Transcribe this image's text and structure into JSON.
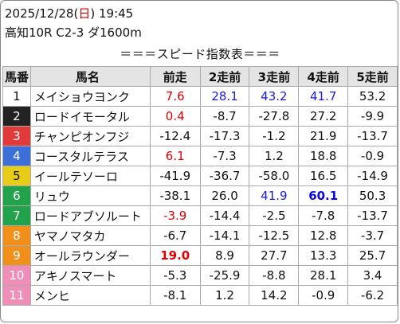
{
  "header": {
    "date": "2025/12/28",
    "weekday_open": "(",
    "weekday": "日",
    "weekday_close": ")",
    "time": "19:45",
    "race_info": "高知10R C2-3 ダ1600m",
    "caption": "＝＝＝スピード指数表＝＝＝"
  },
  "columns": [
    "馬番",
    "馬名",
    "前走",
    "2走前",
    "3走前",
    "4走前",
    "5走前"
  ],
  "colors": {
    "red": "#e00000",
    "blue": "#1a1ad8",
    "bold_blue": "#0a0ae0",
    "bold_red": "#e00000",
    "waku": [
      "#ffffff",
      "#222222",
      "#e03a3a",
      "#3c6fd8",
      "#e8cc1a",
      "#22a24a",
      "#f0901a",
      "#ef8fb8"
    ]
  },
  "rows": [
    {
      "num": "1",
      "name": "メイショウヨンク",
      "waku": 1,
      "vals": [
        {
          "v": "7.6",
          "c": "red"
        },
        {
          "v": "28.1",
          "c": "blue"
        },
        {
          "v": "43.2",
          "c": "blue"
        },
        {
          "v": "41.7",
          "c": "blue"
        },
        {
          "v": "53.2",
          "c": ""
        }
      ]
    },
    {
      "num": "2",
      "name": "ロードイモータル",
      "waku": 2,
      "vals": [
        {
          "v": "0.4",
          "c": "red"
        },
        {
          "v": "-8.7",
          "c": ""
        },
        {
          "v": "-27.8",
          "c": ""
        },
        {
          "v": "27.2",
          "c": ""
        },
        {
          "v": "-9.9",
          "c": ""
        }
      ]
    },
    {
      "num": "3",
      "name": "チャンピオンフジ",
      "waku": 3,
      "vals": [
        {
          "v": "-12.4",
          "c": ""
        },
        {
          "v": "-17.3",
          "c": ""
        },
        {
          "v": "-1.2",
          "c": ""
        },
        {
          "v": "21.9",
          "c": ""
        },
        {
          "v": "-13.7",
          "c": ""
        }
      ]
    },
    {
      "num": "4",
      "name": "コースタルテラス",
      "waku": 4,
      "vals": [
        {
          "v": "6.1",
          "c": "red"
        },
        {
          "v": "-7.3",
          "c": ""
        },
        {
          "v": "1.2",
          "c": ""
        },
        {
          "v": "18.8",
          "c": ""
        },
        {
          "v": "-0.9",
          "c": ""
        }
      ]
    },
    {
      "num": "5",
      "name": "イールテソーロ",
      "waku": 5,
      "vals": [
        {
          "v": "-41.9",
          "c": ""
        },
        {
          "v": "-36.7",
          "c": ""
        },
        {
          "v": "-58.0",
          "c": ""
        },
        {
          "v": "16.5",
          "c": ""
        },
        {
          "v": "-14.9",
          "c": ""
        }
      ]
    },
    {
      "num": "6",
      "name": "リュウ",
      "waku": 6,
      "vals": [
        {
          "v": "-38.1",
          "c": ""
        },
        {
          "v": "26.0",
          "c": ""
        },
        {
          "v": "41.9",
          "c": "blue"
        },
        {
          "v": "60.1",
          "c": "bold_blue"
        },
        {
          "v": "50.3",
          "c": ""
        }
      ]
    },
    {
      "num": "7",
      "name": "ロードアブソルート",
      "waku": 6,
      "vals": [
        {
          "v": "-3.9",
          "c": "red"
        },
        {
          "v": "-14.4",
          "c": ""
        },
        {
          "v": "-2.5",
          "c": ""
        },
        {
          "v": "-7.8",
          "c": ""
        },
        {
          "v": "-13.7",
          "c": ""
        }
      ]
    },
    {
      "num": "8",
      "name": "ヤマノマタカ",
      "waku": 7,
      "vals": [
        {
          "v": "-6.7",
          "c": ""
        },
        {
          "v": "-14.1",
          "c": ""
        },
        {
          "v": "-12.5",
          "c": ""
        },
        {
          "v": "12.8",
          "c": ""
        },
        {
          "v": "-3.7",
          "c": ""
        }
      ]
    },
    {
      "num": "9",
      "name": "オールラウンダー",
      "waku": 7,
      "vals": [
        {
          "v": "19.0",
          "c": "bold_red"
        },
        {
          "v": "8.9",
          "c": ""
        },
        {
          "v": "27.7",
          "c": ""
        },
        {
          "v": "13.3",
          "c": ""
        },
        {
          "v": "25.7",
          "c": ""
        }
      ]
    },
    {
      "num": "10",
      "name": "アキノスマート",
      "waku": 8,
      "vals": [
        {
          "v": "-5.3",
          "c": ""
        },
        {
          "v": "-25.9",
          "c": ""
        },
        {
          "v": "-8.8",
          "c": ""
        },
        {
          "v": "28.1",
          "c": ""
        },
        {
          "v": "3.4",
          "c": ""
        }
      ]
    },
    {
      "num": "11",
      "name": "メンヒ",
      "waku": 8,
      "vals": [
        {
          "v": "-8.1",
          "c": ""
        },
        {
          "v": "1.2",
          "c": ""
        },
        {
          "v": "14.2",
          "c": ""
        },
        {
          "v": "-0.9",
          "c": ""
        },
        {
          "v": "-6.2",
          "c": ""
        }
      ]
    }
  ]
}
